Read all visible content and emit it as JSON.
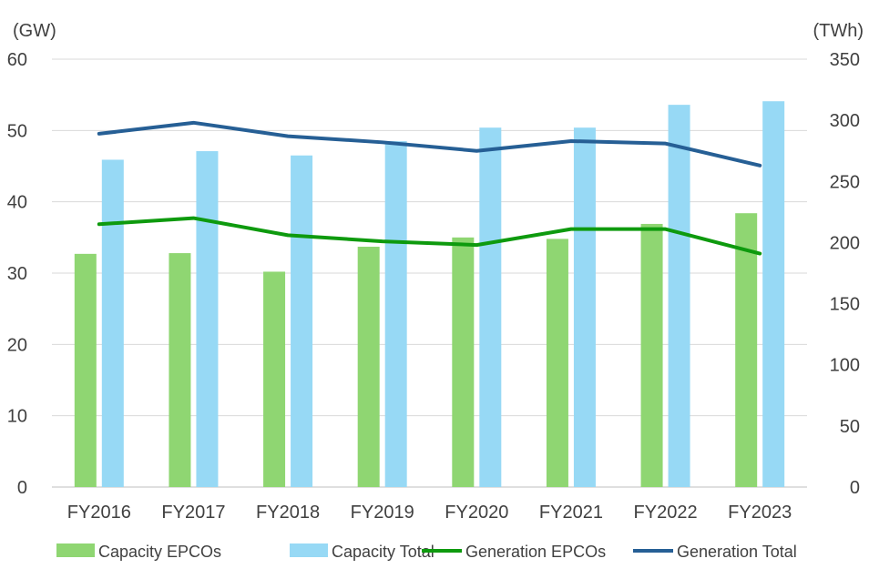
{
  "chart_data": {
    "type": "bar",
    "categories": [
      "FY2016",
      "FY2017",
      "FY2018",
      "FY2019",
      "FY2020",
      "FY2021",
      "FY2022",
      "FY2023"
    ],
    "left_unit": "(GW)",
    "right_unit": "(TWh)",
    "ylim_left": [
      0,
      60
    ],
    "yticks_left": [
      0,
      10,
      20,
      30,
      40,
      50,
      60
    ],
    "ylim_right": [
      0,
      350
    ],
    "yticks_right": [
      0,
      50,
      100,
      150,
      200,
      250,
      300,
      350
    ],
    "grid": true,
    "legend_position": "bottom",
    "series": [
      {
        "name": "Capacity EPCOs",
        "kind": "bar",
        "axis": "left",
        "color": "#8FD672",
        "values": [
          32.7,
          32.8,
          30.2,
          33.7,
          35.0,
          34.8,
          36.9,
          38.4
        ]
      },
      {
        "name": "Capacity Total",
        "kind": "bar",
        "axis": "left",
        "color": "#97D9F5",
        "values": [
          45.9,
          47.1,
          46.5,
          48.5,
          50.4,
          50.4,
          53.6,
          54.1
        ]
      },
      {
        "name": "Generation EPCOs",
        "kind": "line",
        "axis": "right",
        "color": "#0E9A0E",
        "values": [
          215,
          220,
          206,
          201,
          198,
          211,
          211,
          191
        ]
      },
      {
        "name": "Generation Total",
        "kind": "line",
        "axis": "right",
        "color": "#265F95",
        "values": [
          289,
          298,
          287,
          282,
          275,
          283,
          281,
          263
        ]
      }
    ]
  }
}
